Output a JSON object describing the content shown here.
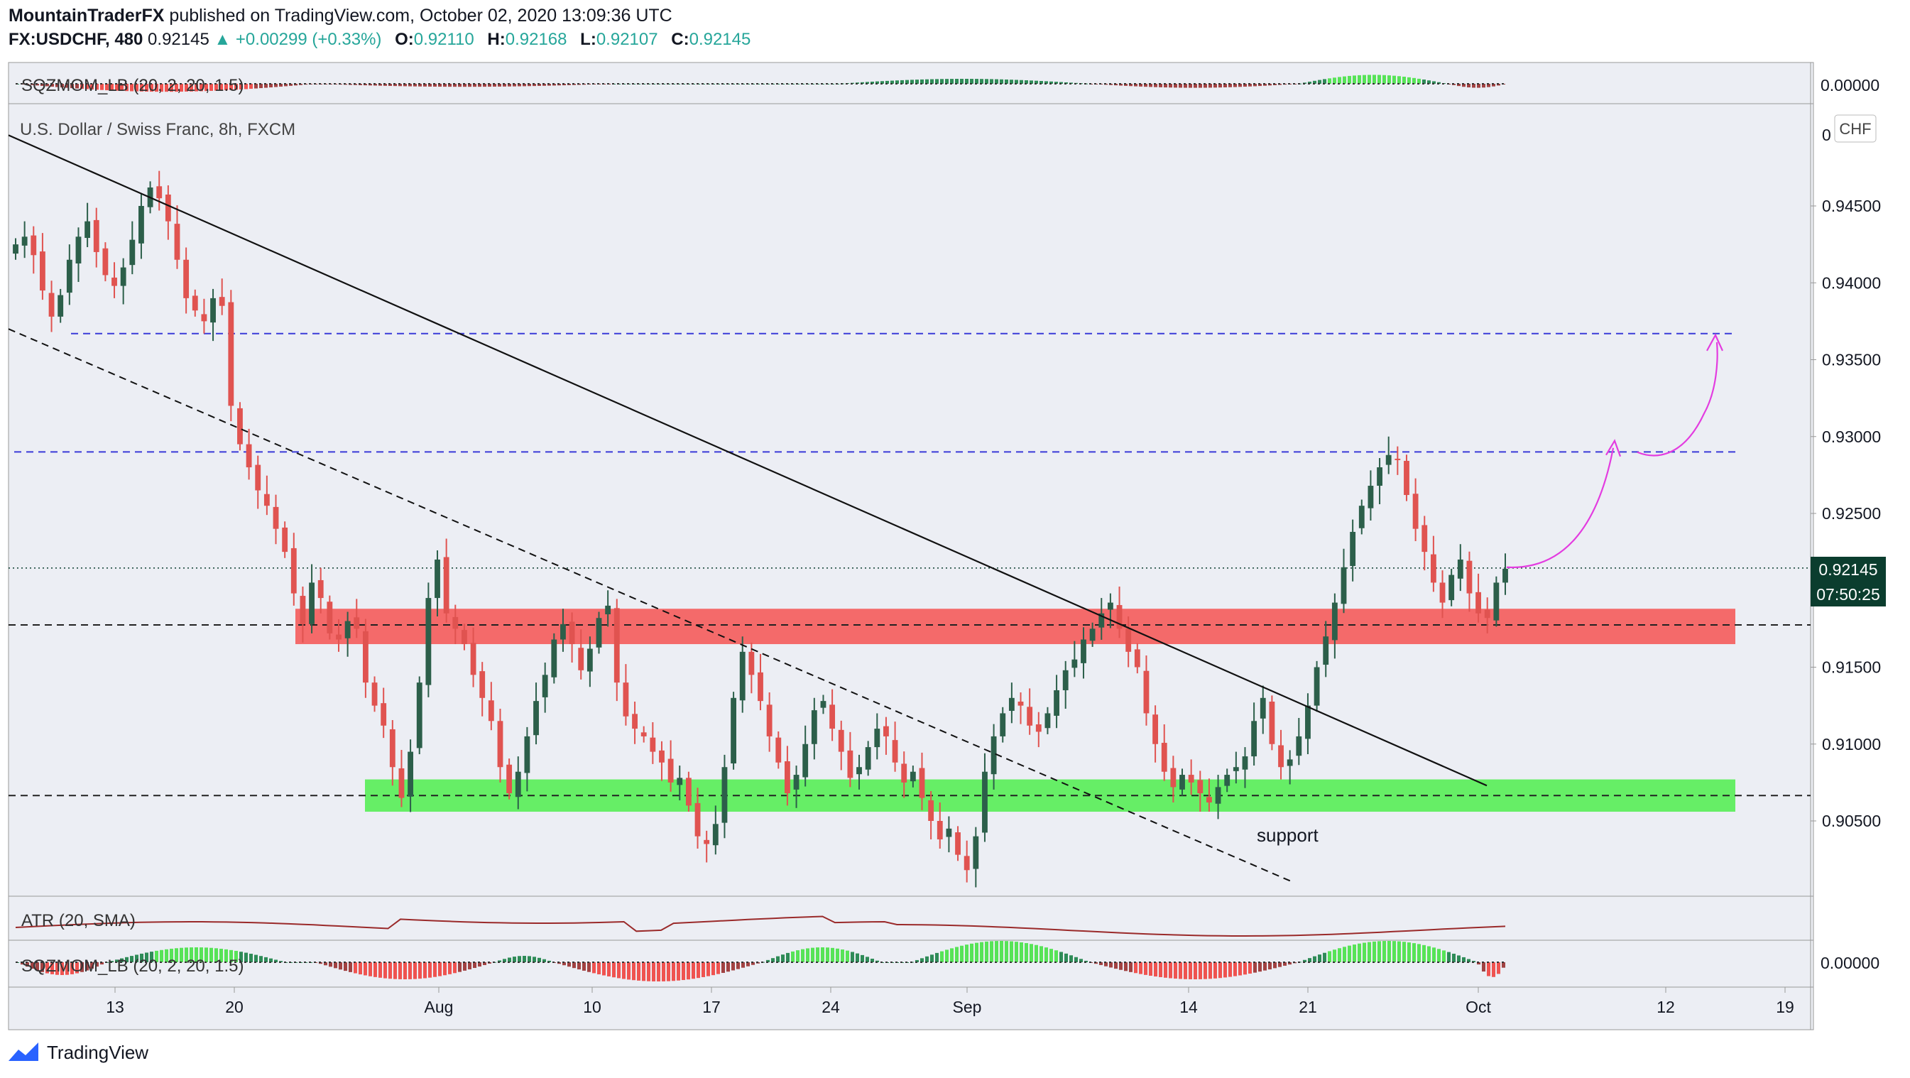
{
  "header": {
    "author": "MountainTraderFX",
    "published": "published on TradingView.com, October 02, 2020 13:09:36 UTC",
    "symbol": "FX:USDCHF, 480",
    "last": "0.92145",
    "change": "▲ +0.00299 (+0.33%)",
    "o_label": "O:",
    "o": "0.92110",
    "h_label": "H:",
    "h": "0.92168",
    "l_label": "L:",
    "l": "0.92107",
    "c_label": "C:",
    "c": "0.92145"
  },
  "chart_data": {
    "type": "candlestick",
    "title": "U.S. Dollar / Swiss Franc, 8h, FXCM",
    "currency_badge": "CHF",
    "price_axis": {
      "range": [
        0.901,
        0.959
      ],
      "ticks": [
        "0.94500",
        "0.94000",
        "0.93500",
        "0.93000",
        "0.92500",
        "0.91500",
        "0.91000",
        "0.90500"
      ],
      "top_clipped_tick": "0"
    },
    "time_axis": {
      "ticks": [
        {
          "label": "13",
          "d": 0
        },
        {
          "label": "20",
          "d": 7
        },
        {
          "label": "Aug",
          "d": 19
        },
        {
          "label": "10",
          "d": 28
        },
        {
          "label": "17",
          "d": 35
        },
        {
          "label": "24",
          "d": 42
        },
        {
          "label": "Sep",
          "d": 50
        },
        {
          "label": "14",
          "d": 63
        },
        {
          "label": "21",
          "d": 70
        },
        {
          "label": "Oct",
          "d": 80
        },
        {
          "label": "12",
          "d": 91
        },
        {
          "label": "19",
          "d": 98
        }
      ]
    },
    "last_price_label": "0.92145",
    "countdown_label": "07:50:25",
    "closes": [
      0.9425,
      0.943,
      0.9418,
      0.9395,
      0.9378,
      0.9392,
      0.9415,
      0.943,
      0.944,
      0.942,
      0.9405,
      0.9398,
      0.941,
      0.9428,
      0.945,
      0.9462,
      0.9455,
      0.944,
      0.9415,
      0.939,
      0.9382,
      0.9375,
      0.939,
      0.9385,
      0.932,
      0.9295,
      0.928,
      0.9265,
      0.9255,
      0.924,
      0.9225,
      0.9198,
      0.9178,
      0.9205,
      0.9195,
      0.9172,
      0.9168,
      0.918,
      0.9175,
      0.914,
      0.9125,
      0.9112,
      0.9085,
      0.9065,
      0.9095,
      0.914,
      0.9195,
      0.922,
      0.9185,
      0.9175,
      0.9165,
      0.9145,
      0.913,
      0.9115,
      0.9085,
      0.9068,
      0.9082,
      0.9105,
      0.9128,
      0.9145,
      0.9168,
      0.9178,
      0.9165,
      0.9148,
      0.9162,
      0.9182,
      0.919,
      0.914,
      0.9118,
      0.911,
      0.9105,
      0.9095,
      0.9088,
      0.9075,
      0.9078,
      0.906,
      0.904,
      0.9035,
      0.9048,
      0.9085,
      0.913,
      0.916,
      0.9145,
      0.9128,
      0.9105,
      0.9088,
      0.9068,
      0.908,
      0.91,
      0.9122,
      0.9128,
      0.911,
      0.9095,
      0.9078,
      0.9085,
      0.9098,
      0.911,
      0.9105,
      0.9088,
      0.9075,
      0.9082,
      0.9065,
      0.905,
      0.9038,
      0.9045,
      0.9028,
      0.9018,
      0.904,
      0.9082,
      0.9105,
      0.912,
      0.913,
      0.9125,
      0.9112,
      0.9108,
      0.912,
      0.9135,
      0.9148,
      0.9155,
      0.9168,
      0.9175,
      0.9185,
      0.9192,
      0.9175,
      0.916,
      0.915,
      0.912,
      0.91,
      0.9082,
      0.9072,
      0.908,
      0.9075,
      0.9068,
      0.9062,
      0.9072,
      0.908,
      0.9085,
      0.9092,
      0.9115,
      0.913,
      0.91,
      0.9085,
      0.909,
      0.9105,
      0.9125,
      0.915,
      0.917,
      0.9192,
      0.9215,
      0.9238,
      0.9255,
      0.9268,
      0.928,
      0.9288,
      0.9285,
      0.9262,
      0.924,
      0.9225,
      0.9205,
      0.9192,
      0.921,
      0.922,
      0.9198,
      0.9185,
      0.9182,
      0.9205,
      0.9214
    ],
    "support_zone": {
      "low": 0.9056,
      "high": 0.9077,
      "label": "support"
    },
    "resistance_zone": {
      "low": 0.9165,
      "high": 0.9188
    },
    "dashed_levels_black": [
      0.91775,
      0.90665
    ],
    "dashed_levels_blue": [
      0.929,
      0.9367
    ],
    "trendline_solid": [
      [
        -6,
        0.9496
      ],
      [
        82,
        0.9073
      ]
    ],
    "trendline_dashed": [
      [
        -6,
        0.937
      ],
      [
        68,
        0.901
      ]
    ],
    "projection_path_points": [
      [
        82,
        0.9215
      ],
      [
        91,
        0.9288
      ],
      [
        94,
        0.929
      ],
      [
        97,
        0.9366
      ]
    ],
    "indicators": [
      {
        "name": "SQZMOM_LB (20, 2, 20, 1.5)",
        "value": "0.00000"
      },
      {
        "name": "ATR (20, SMA)"
      },
      {
        "name": "SQZMOM_LB (20, 2, 20, 1.5)",
        "value": "0.00000"
      }
    ]
  },
  "footer": {
    "brand": "TradingView"
  },
  "colors": {
    "up": "#2c5f4a",
    "down": "#e05350",
    "support": "#66ee66",
    "resistance": "#f46a6a",
    "blue": "#3a3ad8",
    "magenta": "#e33ce0",
    "atr": "#9a2a2a"
  }
}
